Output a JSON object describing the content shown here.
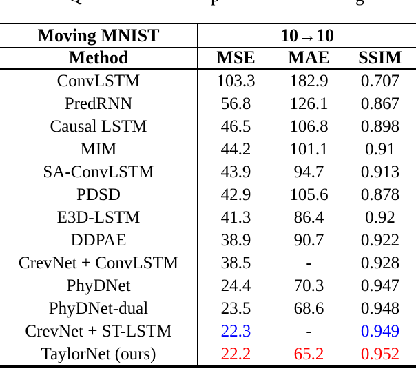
{
  "caption_fragments": {
    "left": "Q",
    "middle": "p",
    "right": "g"
  },
  "colors": {
    "text": "#000000",
    "rule": "#000000",
    "highlight_blue": "#0000ff",
    "highlight_red": "#ff0000",
    "background": "#ffffff"
  },
  "table": {
    "dataset_header": "Moving MNIST",
    "setting_header": "10→10",
    "columns": {
      "method": "Method",
      "mse": "MSE",
      "mae": "MAE",
      "ssim": "SSIM"
    },
    "rows": [
      {
        "method": "ConvLSTM",
        "mse": "103.3",
        "mae": "182.9",
        "ssim": "0.707",
        "highlight": "none"
      },
      {
        "method": "PredRNN",
        "mse": "56.8",
        "mae": "126.1",
        "ssim": "0.867",
        "highlight": "none"
      },
      {
        "method": "Causal LSTM",
        "mse": "46.5",
        "mae": "106.8",
        "ssim": "0.898",
        "highlight": "none"
      },
      {
        "method": "MIM",
        "mse": "44.2",
        "mae": "101.1",
        "ssim": "0.91",
        "highlight": "none"
      },
      {
        "method": "SA-ConvLSTM",
        "mse": "43.9",
        "mae": "94.7",
        "ssim": "0.913",
        "highlight": "none"
      },
      {
        "method": "PDSD",
        "mse": "42.9",
        "mae": "105.6",
        "ssim": "0.878",
        "highlight": "none"
      },
      {
        "method": "E3D-LSTM",
        "mse": "41.3",
        "mae": "86.4",
        "ssim": "0.92",
        "highlight": "none"
      },
      {
        "method": "DDPAE",
        "mse": "38.9",
        "mae": "90.7",
        "ssim": "0.922",
        "highlight": "none"
      },
      {
        "method": "CrevNet + ConvLSTM",
        "mse": "38.5",
        "mae": "-",
        "ssim": "0.928",
        "highlight": "none"
      },
      {
        "method": "PhyDNet",
        "mse": "24.4",
        "mae": "70.3",
        "ssim": "0.947",
        "highlight": "none"
      },
      {
        "method": "PhyDNet-dual",
        "mse": "23.5",
        "mae": "68.6",
        "ssim": "0.948",
        "highlight": "none"
      },
      {
        "method": "CrevNet + ST-LSTM",
        "mse": "22.3",
        "mae": "-",
        "ssim": "0.949",
        "highlight": "blue-mse-ssim"
      },
      {
        "method": "TaylorNet (ours)",
        "mse": "22.2",
        "mae": "65.2",
        "ssim": "0.952",
        "highlight": "red-all"
      }
    ]
  }
}
